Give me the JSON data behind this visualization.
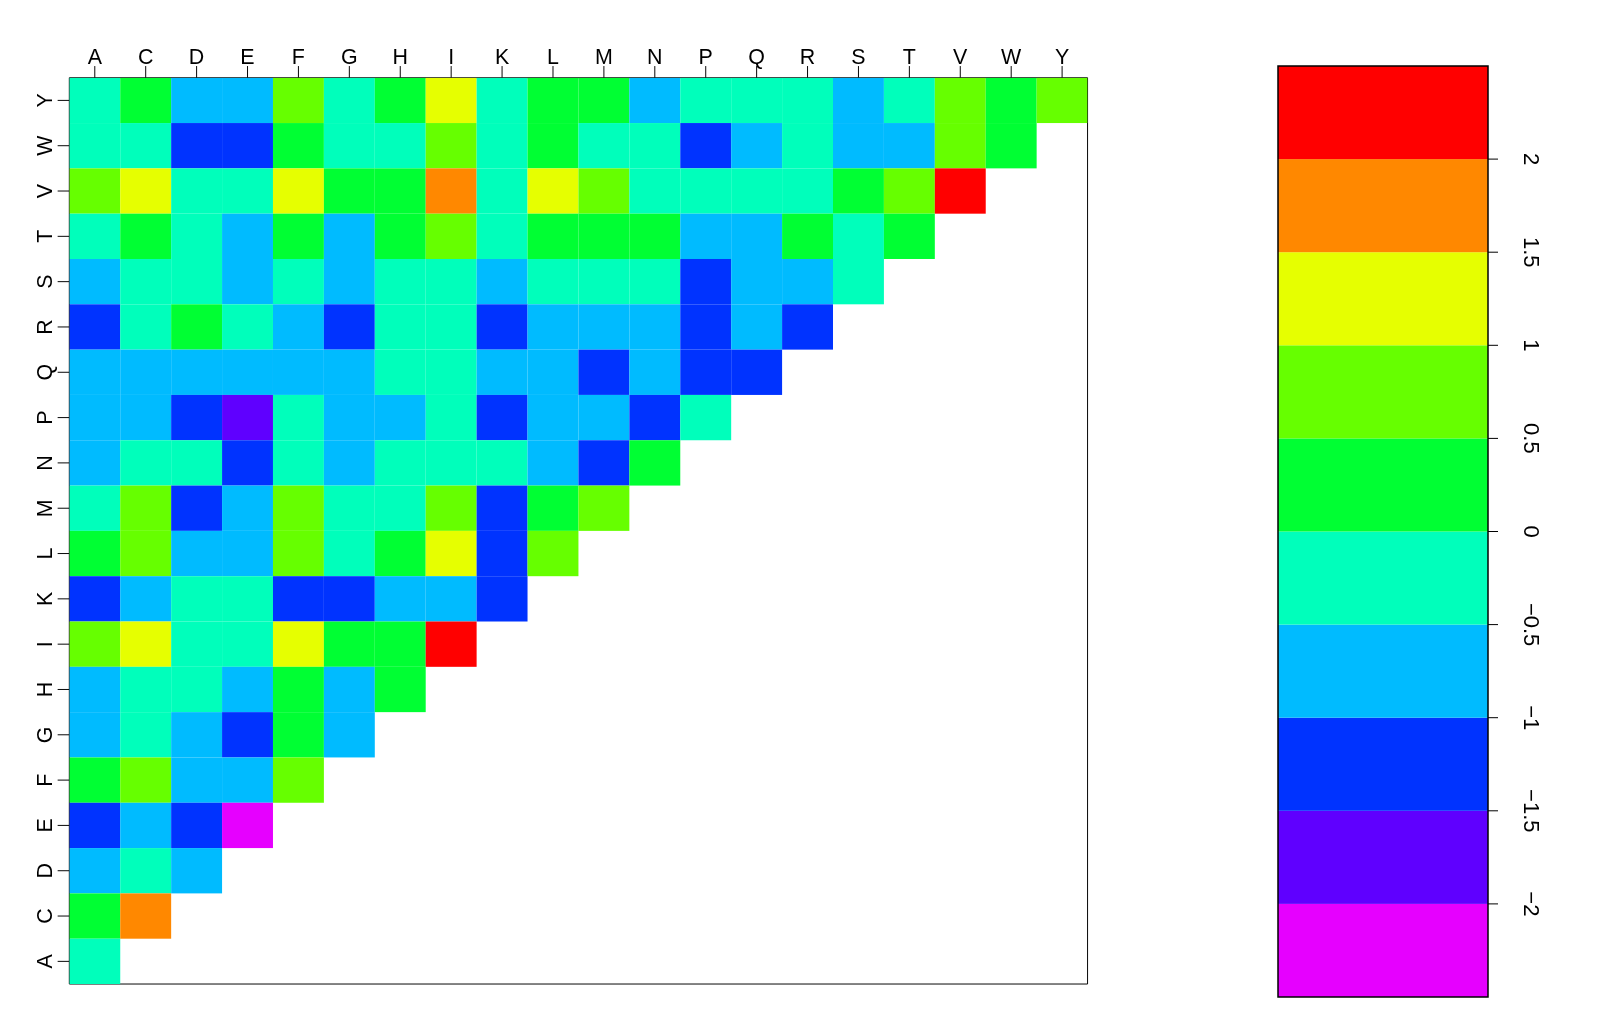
{
  "chart_data": {
    "type": "heatmap",
    "categories": [
      "A",
      "C",
      "D",
      "E",
      "F",
      "G",
      "H",
      "I",
      "K",
      "L",
      "M",
      "N",
      "P",
      "Q",
      "R",
      "S",
      "T",
      "V",
      "W",
      "Y"
    ],
    "y_categories": [
      "Y",
      "W",
      "V",
      "T",
      "S",
      "R",
      "Q",
      "P",
      "N",
      "M",
      "L",
      "K",
      "I",
      "H",
      "G",
      "F",
      "E",
      "D",
      "C",
      "A"
    ],
    "cells": [
      [
        -0.25,
        0.25,
        -0.75,
        -0.75,
        0.75,
        -0.25,
        0.25,
        1.25,
        -0.25,
        0.25,
        0.25,
        -0.75,
        -0.25,
        -0.25,
        -0.25,
        -0.75,
        -0.25,
        0.75,
        0.25,
        0.75
      ],
      [
        -0.25,
        -0.25,
        -1.25,
        -1.25,
        0.25,
        -0.25,
        -0.25,
        0.75,
        -0.25,
        0.25,
        -0.25,
        -0.25,
        -1.25,
        -0.75,
        -0.25,
        -0.75,
        -0.75,
        0.75,
        0.25,
        null
      ],
      [
        0.75,
        1.25,
        -0.25,
        -0.25,
        1.25,
        0.25,
        0.25,
        1.75,
        -0.25,
        1.25,
        0.75,
        -0.25,
        -0.25,
        -0.25,
        -0.25,
        0.25,
        0.75,
        2.25,
        null,
        null
      ],
      [
        -0.25,
        0.25,
        -0.25,
        -0.75,
        0.25,
        -0.75,
        0.25,
        0.75,
        -0.25,
        0.25,
        0.25,
        0.25,
        -0.75,
        -0.75,
        0.25,
        -0.25,
        0.25,
        null,
        null,
        null
      ],
      [
        -0.75,
        -0.25,
        -0.25,
        -0.75,
        -0.25,
        -0.75,
        -0.25,
        -0.25,
        -0.75,
        -0.25,
        -0.25,
        -0.25,
        -1.25,
        -0.75,
        -0.75,
        -0.25,
        null,
        null,
        null,
        null
      ],
      [
        -1.25,
        -0.25,
        0.25,
        -0.25,
        -0.75,
        -1.25,
        -0.25,
        -0.25,
        -1.25,
        -0.75,
        -0.75,
        -0.75,
        -1.25,
        -0.75,
        -1.25,
        null,
        null,
        null,
        null,
        null
      ],
      [
        -0.75,
        -0.75,
        -0.75,
        -0.75,
        -0.75,
        -0.75,
        -0.25,
        -0.25,
        -0.75,
        -0.75,
        -1.25,
        -0.75,
        -1.25,
        -1.25,
        null,
        null,
        null,
        null,
        null,
        null
      ],
      [
        -0.75,
        -0.75,
        -1.25,
        -1.75,
        -0.25,
        -0.75,
        -0.75,
        -0.25,
        -1.25,
        -0.75,
        -0.75,
        -1.25,
        -0.25,
        null,
        null,
        null,
        null,
        null,
        null,
        null
      ],
      [
        -0.75,
        -0.25,
        -0.25,
        -1.25,
        -0.25,
        -0.75,
        -0.25,
        -0.25,
        -0.25,
        -0.75,
        -1.25,
        0.25,
        null,
        null,
        null,
        null,
        null,
        null,
        null,
        null
      ],
      [
        -0.25,
        0.75,
        -1.25,
        -0.75,
        0.75,
        -0.25,
        -0.25,
        0.75,
        -1.25,
        0.25,
        0.75,
        null,
        null,
        null,
        null,
        null,
        null,
        null,
        null,
        null
      ],
      [
        0.25,
        0.75,
        -0.75,
        -0.75,
        0.75,
        -0.25,
        0.25,
        1.25,
        -1.25,
        0.75,
        null,
        null,
        null,
        null,
        null,
        null,
        null,
        null,
        null,
        null
      ],
      [
        -1.25,
        -0.75,
        -0.25,
        -0.25,
        -1.25,
        -1.25,
        -0.75,
        -0.75,
        -1.25,
        null,
        null,
        null,
        null,
        null,
        null,
        null,
        null,
        null,
        null,
        null
      ],
      [
        0.75,
        1.25,
        -0.25,
        -0.25,
        1.25,
        0.25,
        0.25,
        2.25,
        null,
        null,
        null,
        null,
        null,
        null,
        null,
        null,
        null,
        null,
        null,
        null
      ],
      [
        -0.75,
        -0.25,
        -0.25,
        -0.75,
        0.25,
        -0.75,
        0.25,
        null,
        null,
        null,
        null,
        null,
        null,
        null,
        null,
        null,
        null,
        null,
        null,
        null
      ],
      [
        -0.75,
        -0.25,
        -0.75,
        -1.25,
        0.25,
        -0.75,
        null,
        null,
        null,
        null,
        null,
        null,
        null,
        null,
        null,
        null,
        null,
        null,
        null,
        null
      ],
      [
        0.25,
        0.75,
        -0.75,
        -0.75,
        0.75,
        null,
        null,
        null,
        null,
        null,
        null,
        null,
        null,
        null,
        null,
        null,
        null,
        null,
        null,
        null
      ],
      [
        -1.25,
        -0.75,
        -1.25,
        -2.25,
        null,
        null,
        null,
        null,
        null,
        null,
        null,
        null,
        null,
        null,
        null,
        null,
        null,
        null,
        null,
        null
      ],
      [
        -0.75,
        -0.25,
        -0.75,
        null,
        null,
        null,
        null,
        null,
        null,
        null,
        null,
        null,
        null,
        null,
        null,
        null,
        null,
        null,
        null,
        null
      ],
      [
        0.25,
        1.75,
        null,
        null,
        null,
        null,
        null,
        null,
        null,
        null,
        null,
        null,
        null,
        null,
        null,
        null,
        null,
        null,
        null,
        null
      ],
      [
        -0.25,
        null,
        null,
        null,
        null,
        null,
        null,
        null,
        null,
        null,
        null,
        null,
        null,
        null,
        null,
        null,
        null,
        null,
        null,
        null
      ]
    ],
    "clim": [
      -2.5,
      2.5
    ],
    "cticks": [
      {
        "value": -2,
        "label": "−2"
      },
      {
        "value": -1.5,
        "label": "−1.5"
      },
      {
        "value": -1,
        "label": "−1"
      },
      {
        "value": -0.5,
        "label": "−0.5"
      },
      0,
      0.5,
      1,
      1.5,
      2
    ],
    "colors": [
      "#e600ff",
      "#5f00ff",
      "#0033ff",
      "#00bbff",
      "#00ffbb",
      "#00ff33",
      "#66ff00",
      "#e6ff00",
      "#ff8800",
      "#ff0000"
    ]
  }
}
